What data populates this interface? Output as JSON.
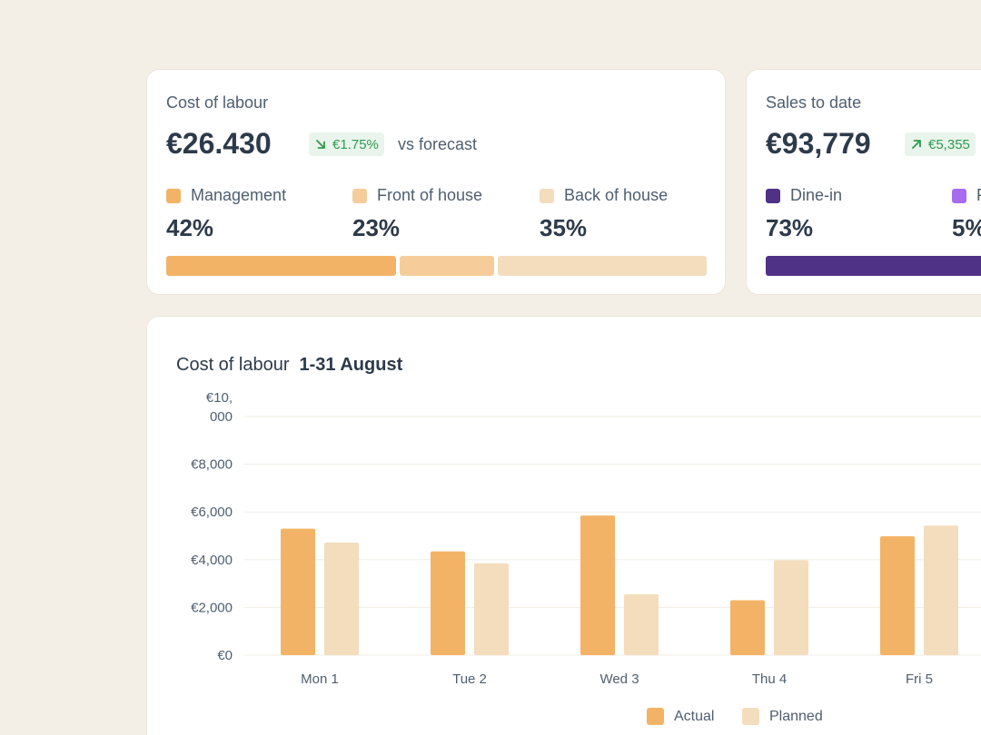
{
  "labour_card": {
    "title": "Cost of labour",
    "value": "€26.430",
    "delta": "€1.75%",
    "delta_direction": "down",
    "vs_text": "vs forecast",
    "segments": [
      {
        "label": "Management",
        "pct": "42%",
        "share": 42,
        "color": "#f3b366"
      },
      {
        "label": "Front of house",
        "pct": "23%",
        "share": 23,
        "color": "#f6cd9a"
      },
      {
        "label": "Back of house",
        "pct": "35%",
        "share": 35,
        "color": "#f3ddbd"
      }
    ]
  },
  "sales_card": {
    "title": "Sales to date",
    "value": "€93,779",
    "delta": "€5,355",
    "delta_direction": "up",
    "segments": [
      {
        "label": "Dine-in",
        "pct": "73%",
        "share": 73,
        "color": "#4f3285"
      },
      {
        "label": "P",
        "pct": "5%",
        "share": 5,
        "color": "#a56cf0"
      }
    ]
  },
  "chart_card": {
    "title": "Cost of labour",
    "range": "1-31 August"
  },
  "chart_data": {
    "type": "bar",
    "categories": [
      "Mon 1",
      "Tue 2",
      "Wed 3",
      "Thu 4",
      "Fri 5"
    ],
    "series": [
      {
        "name": "Actual",
        "values": [
          5300,
          4350,
          5850,
          2300,
          4980
        ],
        "color": "#f3b366"
      },
      {
        "name": "Planned",
        "values": [
          4720,
          3850,
          2550,
          3980,
          5430
        ],
        "color": "#f3ddbd"
      }
    ],
    "y_ticks": [
      {
        "value": 0,
        "label": "€0"
      },
      {
        "value": 2000,
        "label": "€2,000"
      },
      {
        "value": 4000,
        "label": "€4,000"
      },
      {
        "value": 6000,
        "label": "€6,000"
      },
      {
        "value": 8000,
        "label": "€8,000"
      },
      {
        "value": 10000,
        "label": "€10,\n000"
      }
    ],
    "ylim": [
      0,
      10000
    ],
    "grid": true,
    "legend_position": "bottom-center"
  },
  "colors": {
    "background": "#f3efe6",
    "positive": "#2e9a4f",
    "positive_bg": "#e9f5ec"
  }
}
